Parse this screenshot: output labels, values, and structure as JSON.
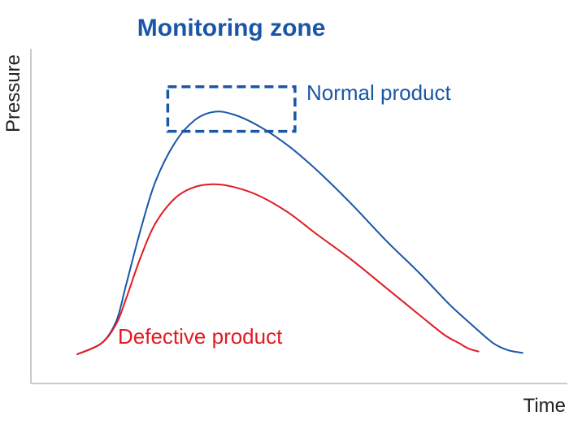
{
  "chart_data": {
    "type": "line",
    "title": "",
    "xlabel": "Time",
    "ylabel": "Pressure",
    "xlim": [
      0,
      100
    ],
    "ylim": [
      0,
      100
    ],
    "grid": false,
    "x_ticks": false,
    "y_ticks": false,
    "series": [
      {
        "name": "Normal product",
        "color": "#1a56a6",
        "points": [
          [
            0,
            0
          ],
          [
            5,
            4
          ],
          [
            8,
            12
          ],
          [
            10,
            25
          ],
          [
            13,
            45
          ],
          [
            16,
            62
          ],
          [
            20,
            76
          ],
          [
            24,
            84
          ],
          [
            28,
            87
          ],
          [
            32,
            86
          ],
          [
            37,
            82
          ],
          [
            43,
            75
          ],
          [
            49,
            66
          ],
          [
            56,
            54
          ],
          [
            63,
            41
          ],
          [
            70,
            29
          ],
          [
            76,
            18
          ],
          [
            81,
            10
          ],
          [
            85,
            4
          ],
          [
            88,
            1.5
          ],
          [
            91,
            0.5
          ]
        ]
      },
      {
        "name": "Defective product",
        "color": "#e01b22",
        "points": [
          [
            0,
            0
          ],
          [
            5,
            4
          ],
          [
            8,
            11
          ],
          [
            10,
            20
          ],
          [
            13,
            35
          ],
          [
            16,
            47
          ],
          [
            20,
            56
          ],
          [
            24,
            60
          ],
          [
            28,
            61
          ],
          [
            32,
            60
          ],
          [
            37,
            57
          ],
          [
            43,
            51
          ],
          [
            49,
            43
          ],
          [
            56,
            34
          ],
          [
            63,
            24
          ],
          [
            70,
            14
          ],
          [
            75,
            7
          ],
          [
            78,
            4
          ],
          [
            80,
            2
          ],
          [
            82,
            1
          ]
        ]
      }
    ],
    "annotations": [
      {
        "text": "Monitoring zone",
        "color": "#1a56a6",
        "box_x": [
          18.5,
          44.5
        ],
        "box_y": [
          80,
          96
        ]
      }
    ]
  }
}
